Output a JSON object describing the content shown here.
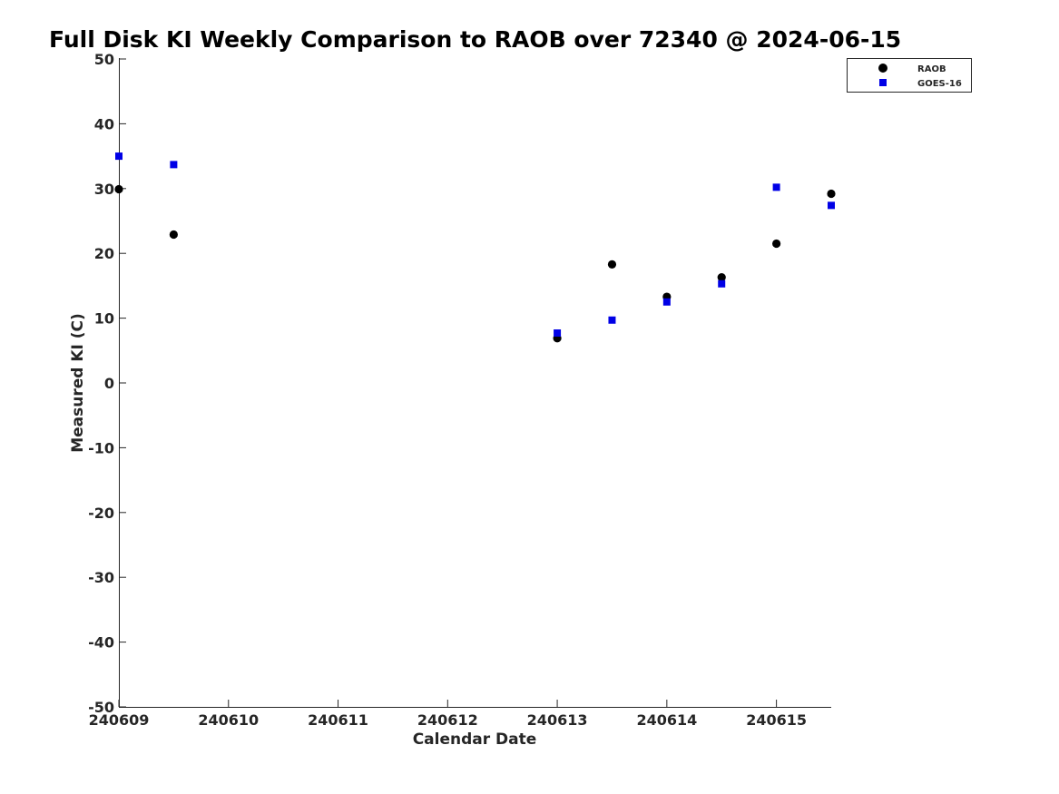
{
  "chart_data": {
    "type": "scatter",
    "title": "Full Disk KI Weekly Comparison to RAOB over 72340 @ 2024-06-15",
    "xlabel": "Calendar Date",
    "ylabel": "Measured KI (C)",
    "xlim": [
      240609,
      240615.5
    ],
    "ylim": [
      -50,
      50
    ],
    "xticks": [
      240609,
      240610,
      240611,
      240612,
      240613,
      240614,
      240615
    ],
    "xtick_labels": [
      "240609",
      "240610",
      "240611",
      "240612",
      "240613",
      "240614",
      "240615"
    ],
    "yticks": [
      -50,
      -40,
      -30,
      -20,
      -10,
      0,
      10,
      20,
      30,
      40,
      50
    ],
    "ytick_labels": [
      "-50",
      "-40",
      "-30",
      "-20",
      "-10",
      "0",
      "10",
      "20",
      "30",
      "40",
      "50"
    ],
    "grid": false,
    "legend_position": "top-right",
    "series": [
      {
        "name": "RAOB",
        "marker": "circle",
        "color": "#000000",
        "x": [
          240609,
          240609.5,
          240613,
          240613.5,
          240614,
          240614.5,
          240615,
          240615.5
        ],
        "y": [
          29.9,
          22.9,
          6.9,
          18.3,
          13.3,
          16.3,
          21.5,
          29.2
        ]
      },
      {
        "name": "GOES-16",
        "marker": "square",
        "color": "#0000e6",
        "x": [
          240609,
          240609.5,
          240613,
          240613.5,
          240614,
          240614.5,
          240615,
          240615.5
        ],
        "y": [
          35.0,
          33.7,
          7.7,
          9.7,
          12.5,
          15.3,
          30.2,
          27.4
        ]
      }
    ]
  }
}
